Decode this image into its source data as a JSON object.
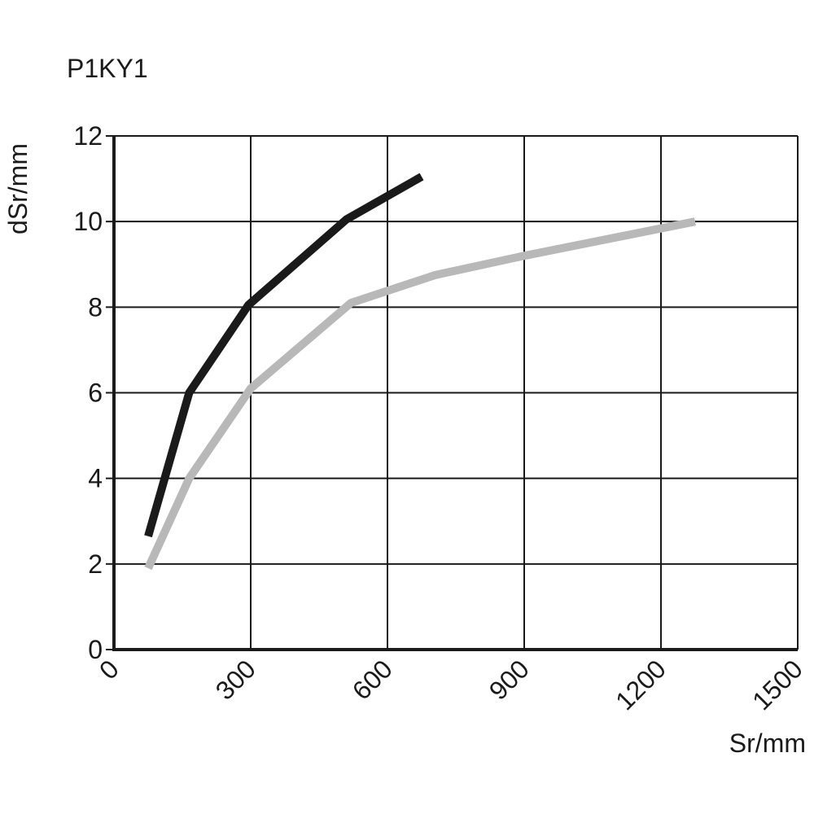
{
  "chart_data": {
    "type": "line",
    "title": "P1KY1",
    "xlabel": "Sr/mm",
    "ylabel": "dSr/mm",
    "xlim": [
      0,
      1500
    ],
    "ylim": [
      0,
      12
    ],
    "x_ticks": [
      "0",
      "300",
      "600",
      "900",
      "1200",
      "1500"
    ],
    "y_ticks": [
      "0",
      "2",
      "4",
      "6",
      "8",
      "10",
      "12"
    ],
    "grid": true,
    "legend": "none",
    "series": [
      {
        "color": "#1a1a1a",
        "points": [
          [
            75,
            2.65
          ],
          [
            165,
            6.0
          ],
          [
            295,
            8.05
          ],
          [
            510,
            10.05
          ],
          [
            675,
            11.05
          ]
        ]
      },
      {
        "color": "#b8b8b8",
        "points": [
          [
            75,
            1.9
          ],
          [
            165,
            4.0
          ],
          [
            300,
            6.1
          ],
          [
            520,
            8.1
          ],
          [
            705,
            8.75
          ],
          [
            900,
            9.2
          ],
          [
            1275,
            10.0
          ]
        ]
      }
    ]
  }
}
